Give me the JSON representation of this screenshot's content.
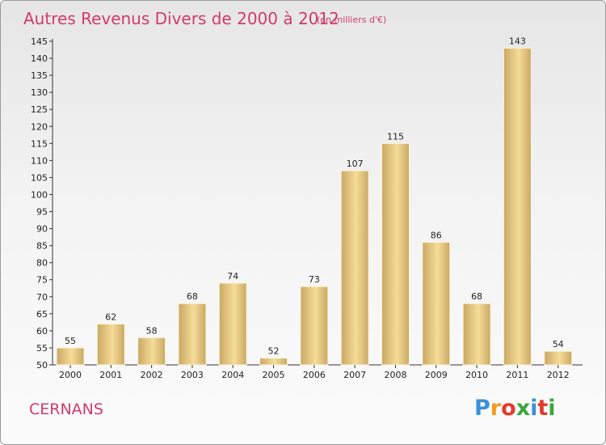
{
  "header": {
    "title": "Autres Revenus Divers de 2000 à 2012",
    "subtitle": "(en milliers d'€)"
  },
  "footer": {
    "city": "CERNANS",
    "brand": "Proxiti",
    "brand_letters": [
      "P",
      "r",
      "o",
      "x",
      "i",
      "t",
      "i"
    ],
    "brand_colors": [
      "#3a8fd6",
      "#f29b1d",
      "#e23b2e",
      "#3aa73a",
      "#3a8fd6",
      "#e23b2e",
      "#3aa73a"
    ]
  },
  "colors": {
    "title": "#d23a6a",
    "bar_light": "#f5dc98",
    "bar_dark": "#c9a864",
    "axis": "#333333"
  },
  "chart_data": {
    "type": "bar",
    "title": "Autres Revenus Divers de 2000 à 2012",
    "subtitle": "(en milliers d'€)",
    "xlabel": "",
    "ylabel": "",
    "categories": [
      "2000",
      "2001",
      "2002",
      "2003",
      "2004",
      "2005",
      "2006",
      "2007",
      "2008",
      "2009",
      "2010",
      "2011",
      "2012"
    ],
    "values": [
      55,
      62,
      58,
      68,
      74,
      52,
      73,
      107,
      115,
      86,
      68,
      143,
      54
    ],
    "ylim": [
      50,
      145
    ],
    "yticks": [
      50,
      55,
      60,
      65,
      70,
      75,
      80,
      85,
      90,
      95,
      100,
      105,
      110,
      115,
      120,
      125,
      130,
      135,
      140,
      145
    ],
    "grid": false,
    "legend": "none"
  }
}
